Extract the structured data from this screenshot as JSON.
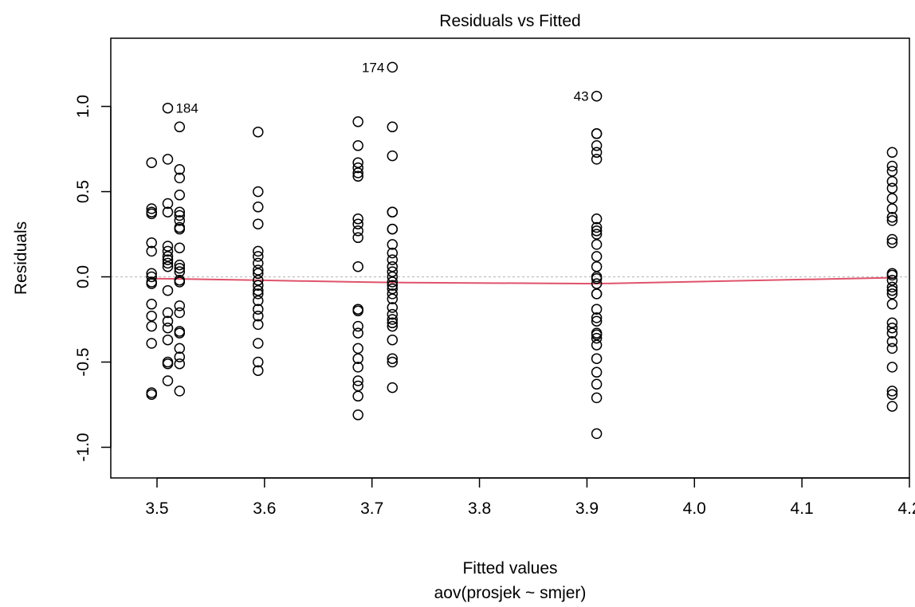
{
  "chart_data": {
    "type": "scatter",
    "title": "Residuals vs Fitted",
    "xlabel": "Fitted values",
    "subtitle": "aov(prosjek ~ smjer)",
    "ylabel": "Residuals",
    "xlim": [
      3.457,
      4.2
    ],
    "ylim": [
      -1.18,
      1.4
    ],
    "xticks": [
      3.5,
      3.6,
      3.7,
      3.8,
      3.9,
      4.0,
      4.1,
      4.2
    ],
    "xtick_labels": [
      "3.5",
      "3.6",
      "3.7",
      "3.8",
      "3.9",
      "4.0",
      "4.1",
      "4.2"
    ],
    "yticks": [
      -1.0,
      -0.5,
      0.0,
      0.5,
      1.0
    ],
    "ytick_labels": [
      "-1.0",
      "-0.5",
      "0.0",
      "0.5",
      "1.0"
    ],
    "grid": false,
    "colors": {
      "points": "#000000",
      "smoother": "#df536b",
      "reference": "#bebebe"
    },
    "groups": [
      {
        "x": 3.495,
        "y": [
          0.67,
          0.4,
          0.38,
          0.37,
          0.2,
          0.15,
          0.02,
          0.0,
          -0.03,
          -0.04,
          -0.16,
          -0.23,
          -0.29,
          -0.39,
          -0.68,
          -0.69
        ]
      },
      {
        "x": 3.51,
        "y": [
          0.99,
          0.69,
          0.43,
          0.38,
          0.18,
          0.15,
          0.12,
          0.1,
          0.08,
          0.06,
          -0.08,
          -0.21,
          -0.26,
          -0.3,
          -0.37,
          -0.5,
          -0.51,
          -0.61
        ]
      },
      {
        "x": 3.521,
        "y": [
          0.88,
          0.63,
          0.58,
          0.48,
          0.38,
          0.36,
          0.33,
          0.29,
          0.28,
          0.17,
          0.07,
          0.05,
          0.03,
          -0.02,
          -0.03,
          -0.17,
          -0.21,
          -0.32,
          -0.33,
          -0.42,
          -0.47,
          -0.51,
          -0.67
        ]
      },
      {
        "x": 3.594,
        "y": [
          0.85,
          0.5,
          0.41,
          0.31,
          0.15,
          0.12,
          0.08,
          0.04,
          0.02,
          -0.02,
          -0.05,
          -0.08,
          -0.1,
          -0.14,
          -0.19,
          -0.23,
          -0.28,
          -0.39,
          -0.5,
          -0.55
        ]
      },
      {
        "x": 3.687,
        "y": [
          0.91,
          0.77,
          0.67,
          0.64,
          0.61,
          0.59,
          0.34,
          0.31,
          0.27,
          0.23,
          0.06,
          -0.19,
          -0.2,
          -0.29,
          -0.33,
          -0.42,
          -0.48,
          -0.53,
          -0.61,
          -0.64,
          -0.7,
          -0.81
        ]
      },
      {
        "x": 3.719,
        "y": [
          1.23,
          0.88,
          0.71,
          0.38,
          0.38,
          0.28,
          0.28,
          0.19,
          0.14,
          0.1,
          0.06,
          0.03,
          0.0,
          -0.03,
          -0.05,
          -0.07,
          -0.1,
          -0.13,
          -0.18,
          -0.22,
          -0.25,
          -0.27,
          -0.29,
          -0.37,
          -0.48,
          -0.5,
          -0.65
        ]
      },
      {
        "x": 3.909,
        "y": [
          1.06,
          0.84,
          0.84,
          0.77,
          0.73,
          0.69,
          0.34,
          0.29,
          0.27,
          0.25,
          0.19,
          0.12,
          0.06,
          0.0,
          -0.01,
          -0.04,
          -0.1,
          -0.1,
          -0.19,
          -0.24,
          -0.26,
          -0.33,
          -0.34,
          -0.36,
          -0.4,
          -0.48,
          -0.56,
          -0.63,
          -0.71,
          -0.92
        ]
      },
      {
        "x": 4.184,
        "y": [
          0.73,
          0.65,
          0.62,
          0.56,
          0.52,
          0.46,
          0.4,
          0.35,
          0.33,
          0.22,
          0.2,
          0.02,
          0.01,
          -0.02,
          -0.06,
          -0.08,
          -0.1,
          -0.16,
          -0.27,
          -0.3,
          -0.33,
          -0.38,
          -0.42,
          -0.53,
          -0.67,
          -0.69,
          -0.76
        ]
      }
    ],
    "smoother": [
      {
        "x": 3.495,
        "y": -0.01
      },
      {
        "x": 3.521,
        "y": -0.012
      },
      {
        "x": 3.594,
        "y": -0.02
      },
      {
        "x": 3.687,
        "y": -0.03
      },
      {
        "x": 3.719,
        "y": -0.033
      },
      {
        "x": 3.909,
        "y": -0.04
      },
      {
        "x": 4.184,
        "y": -0.005
      }
    ],
    "annotations": [
      {
        "label": "184",
        "x": 3.51,
        "y": 0.99,
        "side": "right"
      },
      {
        "label": "174",
        "x": 3.719,
        "y": 1.23,
        "side": "left"
      },
      {
        "label": "43",
        "x": 3.909,
        "y": 1.06,
        "side": "left"
      }
    ]
  }
}
